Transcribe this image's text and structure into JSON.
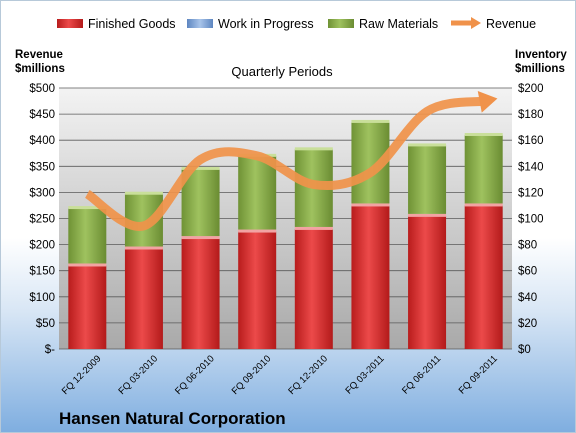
{
  "chart_data": {
    "type": "bar",
    "subtitle": "Quarterly Periods",
    "company": "Hansen Natural Corporation",
    "left_axis_title": [
      "Revenue",
      "$millions"
    ],
    "right_axis_title": [
      "Inventory",
      "$millions"
    ],
    "categories": [
      "FQ 12-2009",
      "FQ 03-2010",
      "FQ 06-2010",
      "FQ 09-2010",
      "FQ 12-2010",
      "FQ 03-2011",
      "FQ 06-2011",
      "FQ 09-2011"
    ],
    "left_ticks": [
      "$-",
      "$50",
      "$100",
      "$150",
      "$200",
      "$250",
      "$300",
      "$350",
      "$400",
      "$450",
      "$500"
    ],
    "right_ticks": [
      "$0",
      "$20",
      "$40",
      "$60",
      "$80",
      "$100",
      "$120",
      "$140",
      "$160",
      "$180",
      "$200"
    ],
    "ylim_inventory": [
      0,
      200
    ],
    "ylim_revenue": [
      0,
      500
    ],
    "legend_placement": "top",
    "grid": true,
    "series": [
      {
        "name": "Finished Goods",
        "axis": "right",
        "color": "#d22a2a",
        "values": [
          64,
          77,
          85,
          90,
          92,
          110,
          102,
          110
        ]
      },
      {
        "name": "Work in Progress",
        "axis": "right",
        "color": "#7fa6d9",
        "values": [
          0,
          0,
          0,
          0,
          0,
          0,
          0,
          0
        ]
      },
      {
        "name": "Raw Materials",
        "axis": "right",
        "color": "#8cb04f",
        "values": [
          44,
          42,
          53,
          58,
          61,
          64,
          54,
          54
        ]
      },
      {
        "name": "Revenue",
        "axis": "left",
        "type": "line",
        "color": "#f0924a",
        "values": [
          297,
          236,
          363,
          370,
          315,
          338,
          455,
          475
        ]
      }
    ]
  }
}
